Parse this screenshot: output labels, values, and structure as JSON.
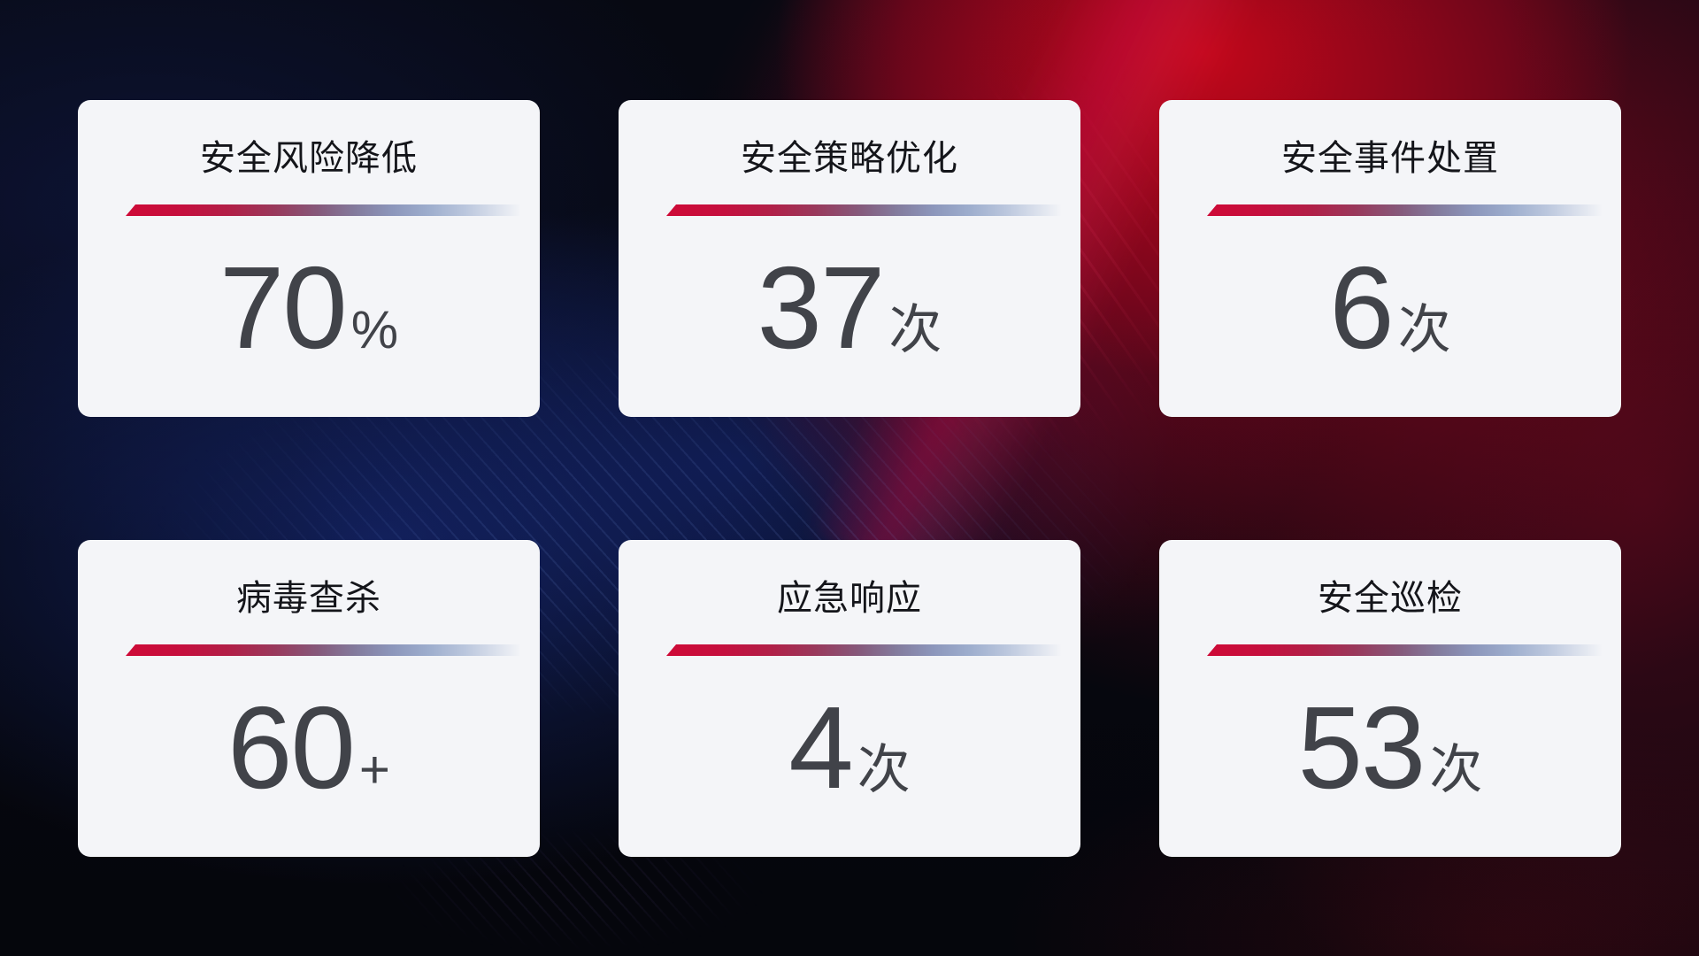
{
  "colors": {
    "card_background": "#f4f5f8",
    "title_text": "#14151a",
    "value_text": "#414349",
    "divider_red": "#ce0a37",
    "divider_blue": "#9dadcd",
    "background_red_glow": "#c8071a",
    "background_blue_glow": "#1b3294"
  },
  "cards": [
    {
      "title": "安全风险降低",
      "value": "70",
      "unit": "%"
    },
    {
      "title": "安全策略优化",
      "value": "37",
      "unit": "次"
    },
    {
      "title": "安全事件处置",
      "value": "6",
      "unit": "次"
    },
    {
      "title": "病毒查杀",
      "value": "60",
      "unit": "+"
    },
    {
      "title": "应急响应",
      "value": "4",
      "unit": "次"
    },
    {
      "title": "安全巡检",
      "value": "53",
      "unit": "次"
    }
  ]
}
